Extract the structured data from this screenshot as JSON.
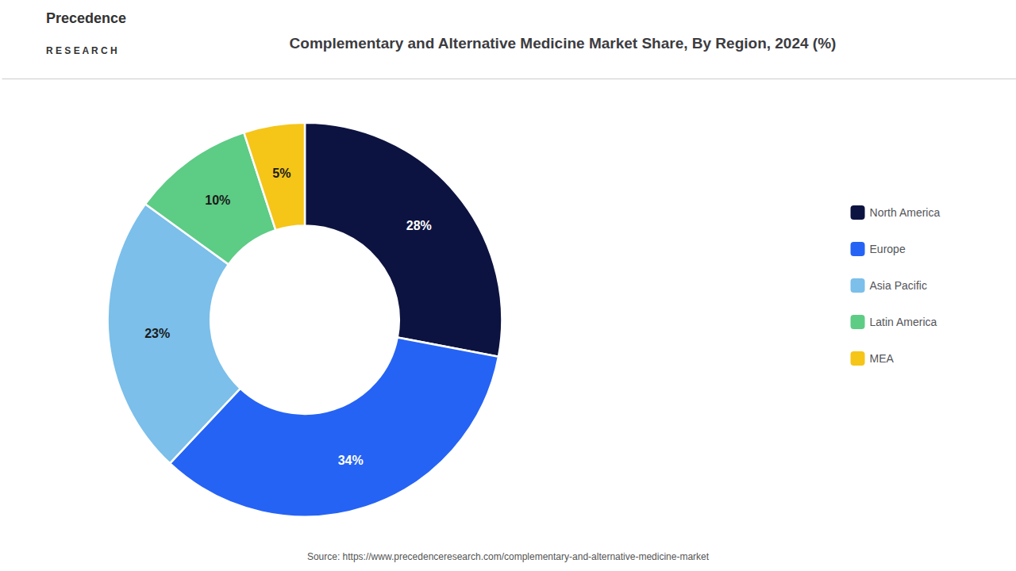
{
  "chart_data": {
    "type": "pie",
    "title": "Complementary and Alternative Medicine Market Share, By Region, 2024 (%)",
    "categories": [
      "North America",
      "Europe",
      "Asia Pacific",
      "Latin America",
      "MEA"
    ],
    "values": [
      28,
      34,
      23,
      10,
      5
    ],
    "value_labels": [
      "28%",
      "34%",
      "23%",
      "10%",
      "5%"
    ],
    "colors": [
      "#0d1340",
      "#2563f5",
      "#7bbfea",
      "#5dcc85",
      "#f5c518"
    ],
    "data_labels": true,
    "legend": "right",
    "annotations": [
      "Precedence",
      "R E S E A R C H",
      "Source: https://www.precedenceresearch.com/complementary-and-alternative-medicine-market"
    ]
  }
}
